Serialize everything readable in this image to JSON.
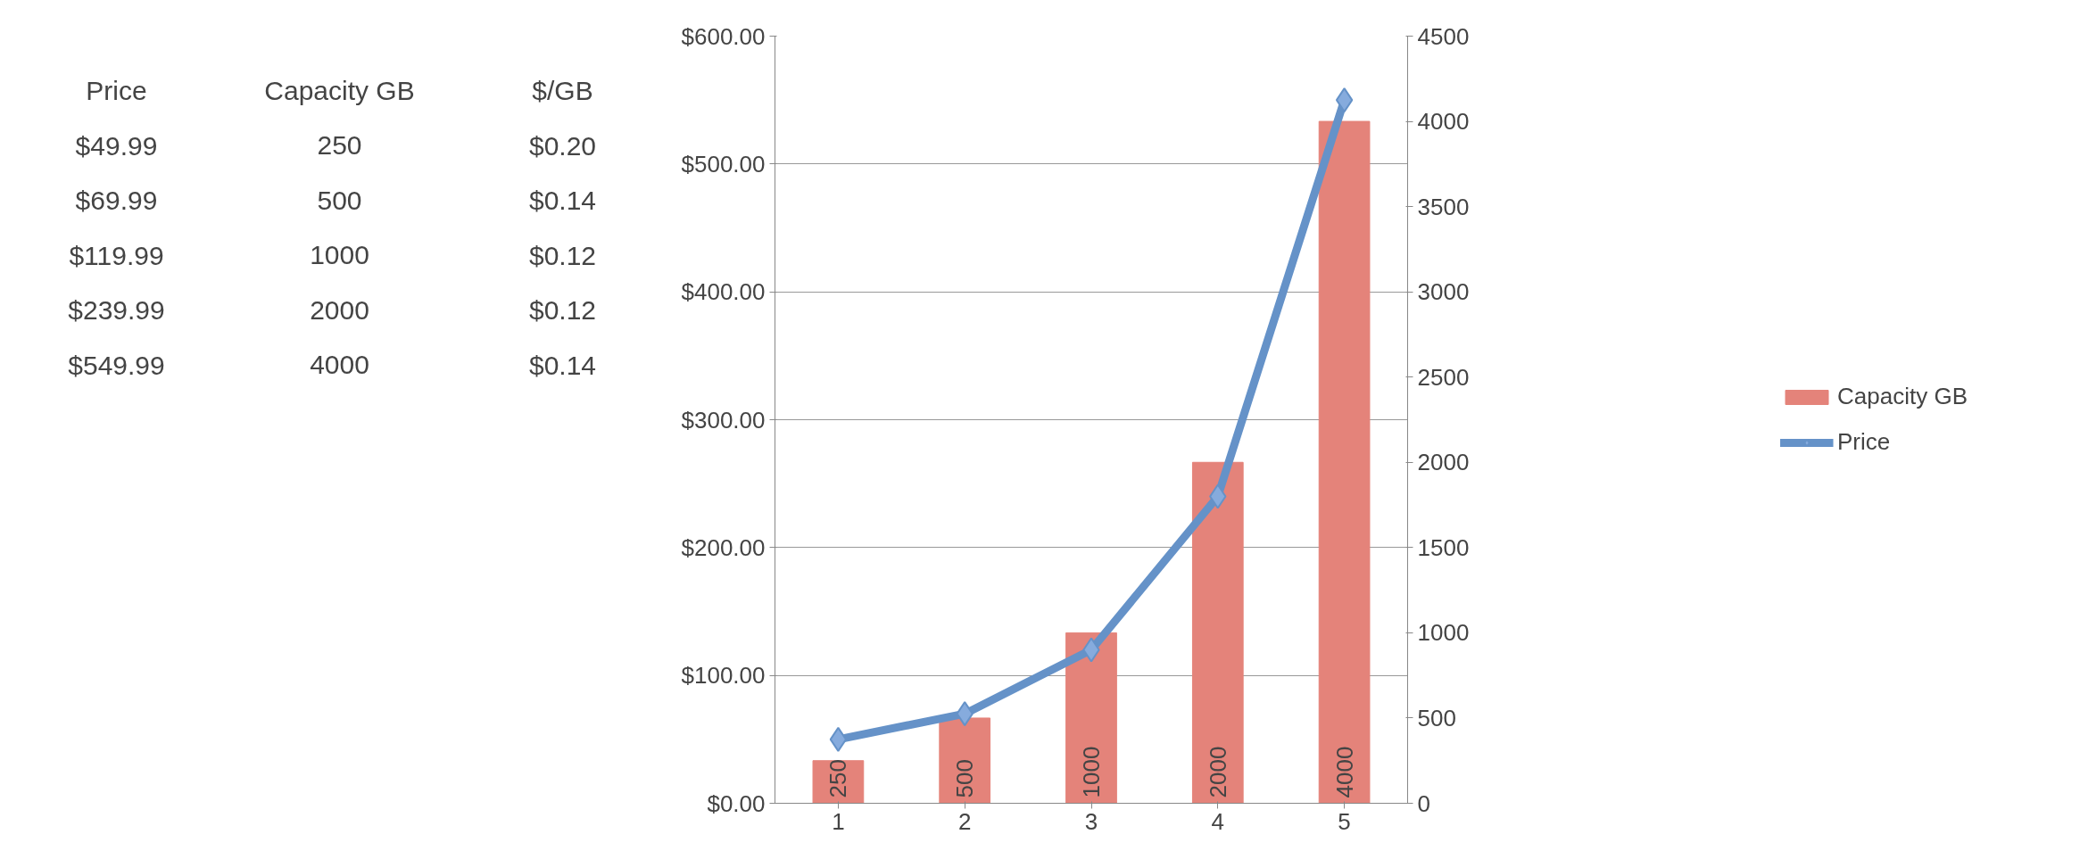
{
  "chart_data": [
    {
      "type": "other",
      "annotations": [
        "Price",
        "Capacity GB",
        "$/GB",
        "$49.99",
        "250",
        "$0.20",
        "$69.99",
        "500",
        "$0.14",
        "$119.99",
        "1000",
        "$0.12",
        "$239.99",
        "2000",
        "$0.12",
        "$549.99",
        "4000",
        "$0.14"
      ]
    },
    {
      "type": "bar",
      "categories": [
        "1",
        "2",
        "3",
        "4",
        "5"
      ],
      "series": [
        {
          "name": "Capacity GB",
          "type": "bar",
          "axis": "y2",
          "color": "#e4837a",
          "values": [
            250,
            500,
            1000,
            2000,
            4000
          ],
          "value_labels": [
            "250",
            "500",
            "1000",
            "2000",
            "4000"
          ]
        },
        {
          "name": "Price",
          "type": "line",
          "axis": "y",
          "color": "#6592c8",
          "marker": "diamond",
          "values": [
            50,
            70,
            120,
            240,
            550
          ]
        }
      ],
      "ylim": [
        0,
        600
      ],
      "yticks": [
        {
          "value": 0,
          "label": "$0.00"
        },
        {
          "value": 100,
          "label": "$100.00"
        },
        {
          "value": 200,
          "label": "$200.00"
        },
        {
          "value": 300,
          "label": "$300.00"
        },
        {
          "value": 400,
          "label": "$400.00"
        },
        {
          "value": 500,
          "label": "$500.00"
        },
        {
          "value": 600,
          "label": "$600.00"
        }
      ],
      "y2lim": [
        0,
        4500
      ],
      "y2ticks": [
        0,
        500,
        1000,
        1500,
        2000,
        2500,
        3000,
        3500,
        4000,
        4500
      ],
      "grid": "y",
      "legend": "right"
    }
  ]
}
